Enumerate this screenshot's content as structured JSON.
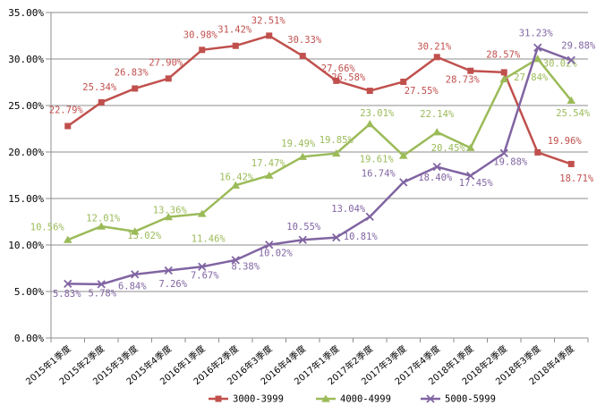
{
  "chart_data": {
    "type": "line",
    "title": "",
    "categories": [
      "2015年1季度",
      "2015年2季度",
      "2015年3季度",
      "2015年4季度",
      "2016年1季度",
      "2016年2季度",
      "2016年3季度",
      "2016年4季度",
      "2017年1季度",
      "2017年2季度",
      "2017年3季度",
      "2017年4季度",
      "2018年1季度",
      "2018年2季度",
      "2018年3季度",
      "2018年4季度"
    ],
    "series": [
      {
        "name": "3000-3999",
        "color": "#c0504d",
        "marker": "square",
        "values": [
          22.79,
          25.34,
          26.83,
          27.9,
          30.98,
          31.42,
          32.51,
          30.33,
          27.66,
          26.58,
          27.55,
          30.21,
          28.73,
          28.57,
          19.96,
          18.71
        ]
      },
      {
        "name": "4000-4999",
        "color": "#9bbb59",
        "marker": "triangle",
        "values": [
          10.56,
          12.01,
          11.46,
          13.02,
          13.36,
          16.42,
          17.47,
          19.49,
          19.85,
          23.01,
          19.61,
          22.14,
          20.45,
          27.84,
          30.02,
          25.54
        ]
      },
      {
        "name": "5000-5999",
        "color": "#8064a2",
        "marker": "x",
        "values": [
          5.83,
          5.78,
          6.84,
          7.26,
          7.67,
          8.38,
          10.02,
          10.55,
          10.81,
          13.04,
          16.74,
          18.4,
          17.45,
          19.88,
          31.23,
          29.88
        ]
      }
    ],
    "y_axis": {
      "min": 0,
      "max": 35,
      "step": 5,
      "tick_labels": [
        "0.00%",
        "5.00%",
        "10.00%",
        "15.00%",
        "20.00%",
        "25.00%",
        "30.00%",
        "35.00%"
      ]
    },
    "data_label_format": "0.00%",
    "grid": true,
    "legend_position": "bottom",
    "axis_color": "#8e8e8e",
    "text_color": "#000000",
    "background_color": "#ffffff"
  }
}
